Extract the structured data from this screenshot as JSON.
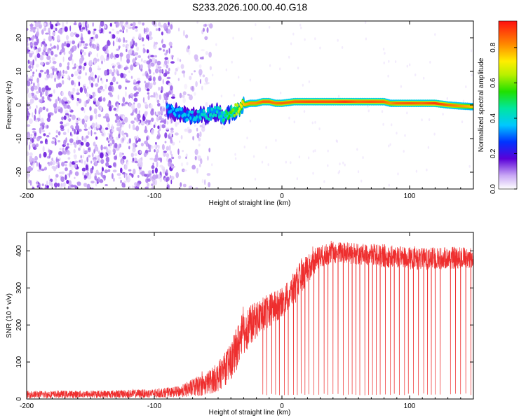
{
  "title": "S233.2026.100.00.40.G18",
  "colors": {
    "snr_line": "#ee2e2e",
    "axis": "#000000",
    "background": "#ffffff"
  },
  "chart_data": [
    {
      "type": "heatmap",
      "title": "S233.2026.100.00.40.G18",
      "xlabel": "Height of straight line (km)",
      "ylabel": "Frequency (Hz)",
      "xlim": [
        -200,
        150
      ],
      "ylim": [
        -25,
        25
      ],
      "xticks": [
        "-200",
        "-100",
        "0",
        "100"
      ],
      "xtick_values": [
        -200,
        -100,
        0,
        100
      ],
      "yticks": [
        "20",
        "10",
        "0",
        "-10",
        "-20"
      ],
      "ytick_values": [
        20,
        10,
        0,
        -10,
        -20
      ],
      "colorbar": {
        "label": "Normalized spectral amplitude",
        "range": [
          0,
          0.95
        ],
        "ticks": [
          "0.0",
          "0.2",
          "0.4",
          "0.6",
          "0.8"
        ],
        "tick_values": [
          0.0,
          0.2,
          0.4,
          0.6,
          0.8
        ]
      },
      "ridge": {
        "x": [
          -90,
          -80,
          -70,
          -60,
          -50,
          -45,
          -40,
          -35,
          -30,
          -25,
          -20,
          -15,
          -10,
          -5,
          0,
          10,
          20,
          30,
          40,
          50,
          60,
          70,
          80,
          85,
          90,
          100,
          110,
          120,
          130,
          140,
          150
        ],
        "freq": [
          -1.5,
          -2.5,
          -3.5,
          -3.0,
          -2.0,
          -3.5,
          -2.5,
          -1.0,
          0.0,
          0.5,
          0.5,
          1.0,
          1.0,
          0.5,
          0.5,
          1.0,
          1.0,
          1.0,
          1.0,
          1.0,
          1.0,
          1.0,
          1.0,
          0.5,
          0.5,
          0.5,
          0.5,
          0.5,
          0.0,
          -0.3,
          -0.5
        ],
        "amplitude": [
          0.35,
          0.4,
          0.4,
          0.45,
          0.45,
          0.5,
          0.6,
          0.7,
          0.8,
          0.85,
          0.85,
          0.9,
          0.9,
          0.88,
          0.9,
          0.9,
          0.92,
          0.92,
          0.92,
          0.95,
          0.9,
          0.92,
          0.9,
          0.85,
          0.9,
          0.92,
          0.9,
          0.95,
          0.9,
          0.85,
          0.8
        ]
      },
      "noise_region": {
        "x_range": [
          -200,
          -55
        ],
        "dense_until": -85,
        "amplitude_range": [
          0.02,
          0.12
        ]
      }
    },
    {
      "type": "line",
      "xlabel": "Height of straight line (km)",
      "ylabel": "SNR (10 * v/v)",
      "xlim": [
        -200,
        150
      ],
      "ylim": [
        0,
        450
      ],
      "xticks": [
        "-200",
        "-100",
        "0",
        "100"
      ],
      "xtick_values": [
        -200,
        -100,
        0,
        100
      ],
      "yticks": [
        "0",
        "100",
        "200",
        "300",
        "400"
      ],
      "ytick_values": [
        0,
        100,
        200,
        300,
        400
      ],
      "envelope": {
        "x": [
          -200,
          -150,
          -100,
          -80,
          -70,
          -60,
          -50,
          -40,
          -35,
          -30,
          -20,
          -10,
          0,
          10,
          15,
          20,
          25,
          30,
          40,
          50,
          60,
          70,
          80,
          90,
          100,
          110,
          120,
          130,
          140,
          150
        ],
        "mean": [
          12,
          13,
          15,
          20,
          30,
          40,
          60,
          100,
          140,
          180,
          215,
          240,
          260,
          300,
          330,
          350,
          370,
          385,
          395,
          395,
          392,
          390,
          385,
          385,
          380,
          378,
          380,
          380,
          382,
          380
        ],
        "spread": [
          10,
          10,
          12,
          15,
          25,
          30,
          40,
          50,
          60,
          60,
          50,
          45,
          40,
          45,
          45,
          40,
          35,
          30,
          30,
          30,
          30,
          30,
          30,
          30,
          30,
          30,
          30,
          30,
          30,
          30
        ]
      },
      "dropouts_x": [
        -15,
        -12,
        -8,
        -5,
        -2,
        2,
        5,
        9,
        12,
        15,
        18,
        21,
        25,
        29,
        33,
        36,
        40,
        44,
        48,
        52,
        55,
        58,
        61,
        65,
        68,
        71,
        74,
        77,
        81,
        85,
        88,
        92,
        96,
        99,
        103,
        107,
        111,
        114,
        117,
        120,
        124,
        132,
        136,
        140,
        144,
        148
      ],
      "dropout_min": 10
    }
  ]
}
